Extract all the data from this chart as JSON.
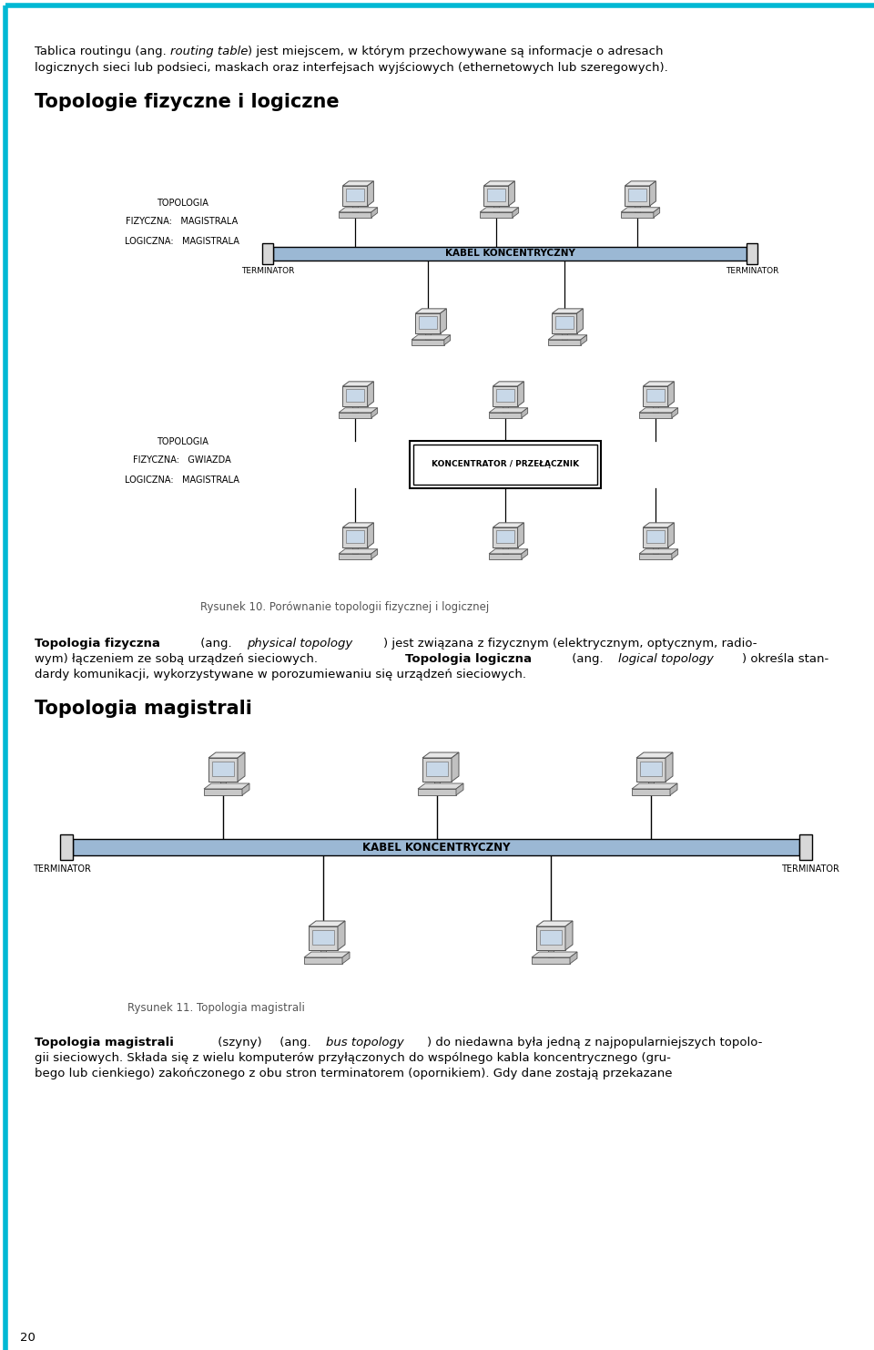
{
  "bg_color": "#ffffff",
  "border_color": "#00b8d4",
  "page_width": 9.6,
  "page_height": 14.82,
  "top_text_line1": "Tablica routingu (ang. routing table) jest miejscem, w którym przechowywane są informacje o adresach",
  "top_text_italic": "routing table",
  "top_text_line2": "logicznych sieci lub podsieci, maskach oraz interfejsach wyjściowych (ethernetowych lub szeregowych).",
  "heading1": "Topologie fizyczne i logiczne",
  "heading2": "Topologia magistrali",
  "fig10_caption": "Rysunek 10. Porównanie topologii fizycznej i logicznej",
  "fig11_caption": "Rysunek 11. Topologia magistrali",
  "diagram1_label1": "TOPOLOGIA",
  "diagram1_label2": "FIZYCZNA:   MAGISTRALA",
  "diagram1_label3": "LOGICZNA:   MAGISTRALA",
  "diagram1_cable": "KABEL KONCENTRYCZNY",
  "diagram1_term1": "TERMINATOR",
  "diagram1_term2": "TERMINATOR",
  "diagram2_label1": "TOPOLOGIA",
  "diagram2_label2": "FIZYCZNA:   GWIAZDA",
  "diagram2_label3": "LOGICZNA:   MAGISTRALA",
  "diagram2_hub": "KONCENTRATOR / PRZEŁĄCZNIK",
  "diagram3_cable": "KABEL KONCENTRYCZNY",
  "diagram3_term1": "TERMINATOR",
  "diagram3_term2": "TERMINATOR",
  "page_num": "20",
  "cable_color": "#9bb8d4",
  "cable_border": "#000000",
  "hub_fill": "#ffffff",
  "hub_border": "#000000"
}
